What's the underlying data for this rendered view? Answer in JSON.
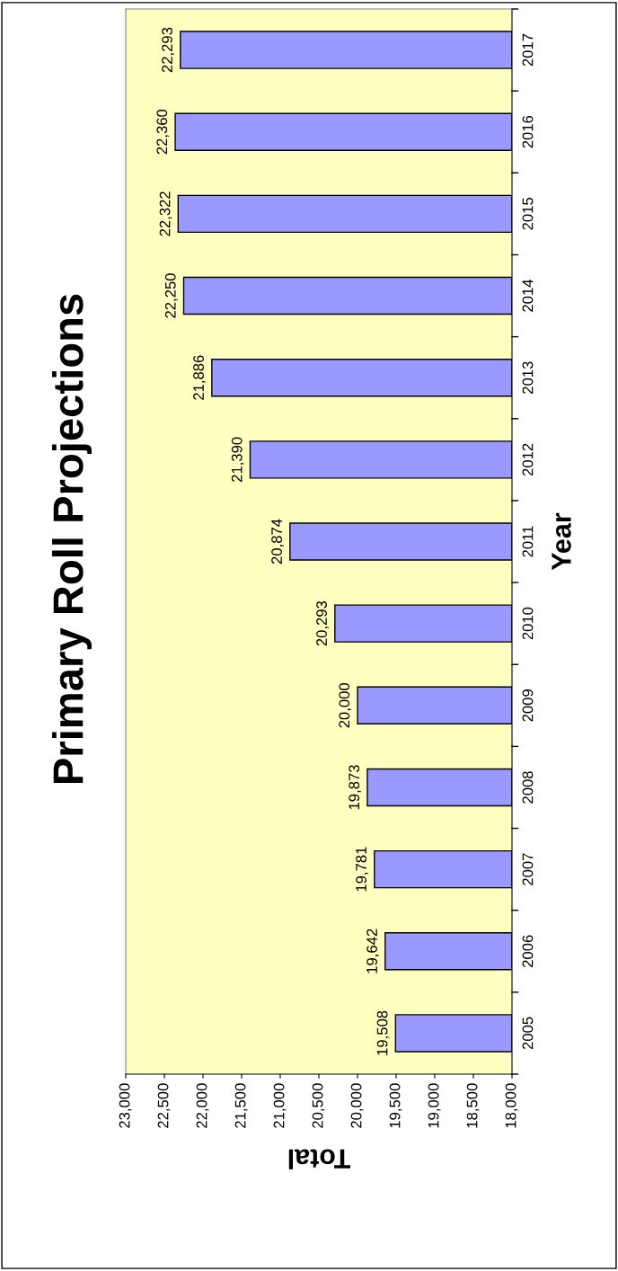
{
  "chart_data": {
    "type": "bar",
    "orientation": "horizontal",
    "title": "Primary Roll Projections",
    "xlabel": "Total",
    "ylabel": "Year",
    "categories": [
      "2017",
      "2016",
      "2015",
      "2014",
      "2013",
      "2012",
      "2011",
      "2010",
      "2009",
      "2008",
      "2007",
      "2006",
      "2005"
    ],
    "values": [
      22293,
      22360,
      22322,
      22250,
      21886,
      21390,
      20874,
      20293,
      20000,
      19873,
      19781,
      19642,
      19508
    ],
    "value_labels": [
      "22,293",
      "22,360",
      "22,322",
      "22,250",
      "21,886",
      "21,390",
      "20,874",
      "20,293",
      "20,000",
      "19,873",
      "19,781",
      "19,642",
      "19,508"
    ],
    "color": "#9999ff",
    "xlim": [
      23000,
      18000
    ],
    "xticks": [
      {
        "value": 23000,
        "label": "23,000"
      },
      {
        "value": 22500,
        "label": "22,500"
      },
      {
        "value": 22000,
        "label": "22,000"
      },
      {
        "value": 21500,
        "label": "21,500"
      },
      {
        "value": 21000,
        "label": "21,000"
      },
      {
        "value": 20500,
        "label": "20,500"
      },
      {
        "value": 20000,
        "label": "20,000"
      },
      {
        "value": 19500,
        "label": "19,500"
      },
      {
        "value": 19000,
        "label": "19,000"
      },
      {
        "value": 18500,
        "label": "18,500"
      },
      {
        "value": 18000,
        "label": "18,000"
      }
    ],
    "grid": false,
    "legend": false
  }
}
